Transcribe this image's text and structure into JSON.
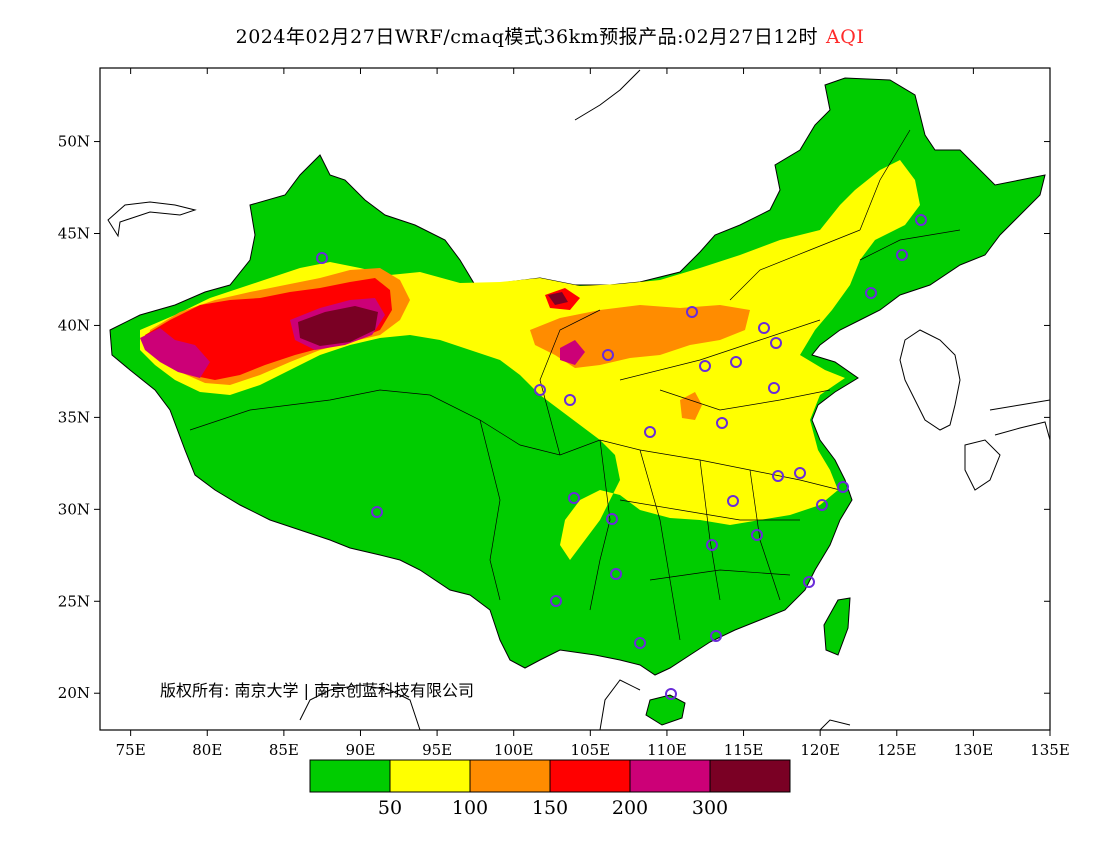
{
  "title": {
    "main": "2024年02月27日WRF/cmaq模式36km预报产品:02月27日12时",
    "highlight": "AQI",
    "highlight_color": "#ff2a2a"
  },
  "map": {
    "lon_ticks": [
      "75E",
      "80E",
      "85E",
      "90E",
      "95E",
      "100E",
      "105E",
      "110E",
      "115E",
      "120E",
      "125E",
      "130E",
      "135E"
    ],
    "lat_ticks": [
      "50N",
      "45N",
      "40N",
      "35N",
      "30N",
      "25N",
      "20N"
    ],
    "lon_range": [
      73,
      135
    ],
    "lat_range": [
      18,
      54
    ],
    "copyright": "版权所有: 南京大学 | 南京创蓝科技有限公司"
  },
  "legend": {
    "colors": [
      "#00cc00",
      "#ffff00",
      "#ff8c00",
      "#ff0000",
      "#cc0077",
      "#7a0024"
    ],
    "labels": [
      "50",
      "100",
      "150",
      "200",
      "300"
    ]
  }
}
